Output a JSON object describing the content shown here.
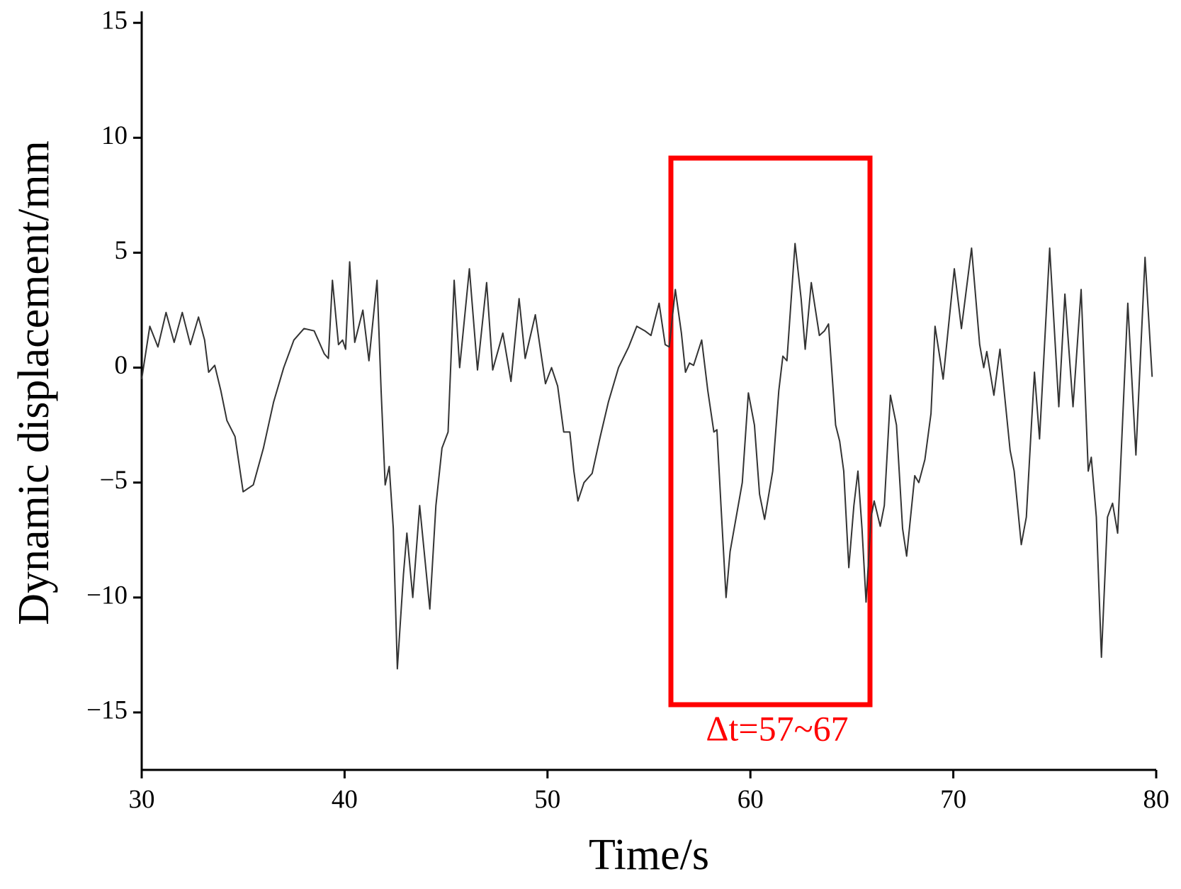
{
  "chart_data": {
    "type": "line",
    "xlabel": "Time/s",
    "ylabel": "Dynamic displacement/mm",
    "annotation": "Δt=57~67",
    "color": "#333333",
    "x": [
      30.0,
      30.4,
      30.8,
      31.2,
      31.6,
      32.0,
      32.4,
      32.8,
      33.1,
      33.3,
      33.6,
      33.9,
      34.2,
      34.6,
      35.0,
      35.5,
      36.0,
      36.5,
      37.0,
      37.5,
      38.0,
      38.5,
      39.0,
      39.2,
      39.4,
      39.7,
      39.9,
      40.05,
      40.25,
      40.5,
      40.9,
      41.2,
      41.6,
      41.8,
      42.0,
      42.2,
      42.4,
      42.6,
      42.9,
      43.07,
      43.36,
      43.7,
      44.2,
      44.5,
      44.8,
      45.1,
      45.4,
      45.67,
      46.15,
      46.55,
      47.0,
      47.3,
      47.8,
      48.2,
      48.6,
      48.9,
      49.4,
      49.9,
      50.2,
      50.5,
      50.8,
      51.1,
      51.3,
      51.5,
      51.8,
      52.2,
      52.6,
      53.0,
      53.5,
      54.0,
      54.4,
      54.8,
      55.1,
      55.5,
      55.8,
      56.0,
      56.3,
      56.6,
      56.8,
      57.0,
      57.2,
      57.6,
      57.9,
      58.2,
      58.35,
      58.55,
      58.8,
      59.0,
      59.3,
      59.6,
      59.9,
      60.2,
      60.45,
      60.7,
      61.1,
      61.4,
      61.6,
      61.8,
      62.2,
      62.5,
      62.7,
      63.0,
      63.4,
      63.65,
      63.85,
      64.2,
      64.4,
      64.6,
      64.85,
      65.1,
      65.3,
      65.5,
      65.7,
      65.95,
      66.1,
      66.4,
      66.6,
      66.9,
      67.2,
      67.5,
      67.7,
      68.1,
      68.3,
      68.6,
      68.9,
      69.1,
      69.5,
      70.05,
      70.4,
      70.9,
      71.3,
      71.5,
      71.65,
      72.0,
      72.3,
      72.8,
      73.0,
      73.35,
      73.6,
      73.85,
      74.0,
      74.25,
      74.75,
      75.2,
      75.5,
      75.9,
      76.3,
      76.65,
      76.8,
      77.05,
      77.3,
      77.6,
      77.85,
      78.1,
      78.6,
      79.0,
      79.45,
      79.8
    ],
    "values": [
      -0.5,
      1.8,
      0.9,
      2.4,
      1.1,
      2.4,
      1.0,
      2.2,
      1.2,
      -0.2,
      0.1,
      -1.0,
      -2.3,
      -3.0,
      -5.4,
      -5.1,
      -3.5,
      -1.5,
      0.0,
      1.2,
      1.7,
      1.6,
      0.6,
      0.4,
      3.8,
      1.0,
      1.2,
      0.8,
      4.6,
      1.1,
      2.5,
      0.3,
      3.8,
      -1.0,
      -5.1,
      -4.3,
      -7.0,
      -13.1,
      -9.0,
      -7.2,
      -10.0,
      -6.0,
      -10.5,
      -6.0,
      -3.5,
      -2.8,
      3.8,
      0.0,
      4.3,
      -0.1,
      3.7,
      -0.1,
      1.5,
      -0.6,
      3.0,
      0.4,
      2.3,
      -0.7,
      0.0,
      -0.8,
      -2.8,
      -2.8,
      -4.5,
      -5.8,
      -5.0,
      -4.6,
      -3.0,
      -1.5,
      0.0,
      0.9,
      1.8,
      1.6,
      1.4,
      2.8,
      1.0,
      0.9,
      3.4,
      1.5,
      -0.2,
      0.2,
      0.1,
      1.2,
      -1.0,
      -2.8,
      -2.7,
      -6.0,
      -10.0,
      -8.0,
      -6.5,
      -5.0,
      -1.1,
      -2.5,
      -5.5,
      -6.6,
      -4.5,
      -1.0,
      0.5,
      0.3,
      5.4,
      3.0,
      0.8,
      3.7,
      1.4,
      1.6,
      1.9,
      -2.5,
      -3.2,
      -4.5,
      -8.7,
      -6.0,
      -4.5,
      -7.0,
      -10.2,
      -6.5,
      -5.8,
      -6.9,
      -6.0,
      -1.2,
      -2.5,
      -7.0,
      -8.2,
      -4.7,
      -5.0,
      -4.0,
      -2.0,
      1.8,
      -0.5,
      4.3,
      1.7,
      5.2,
      1.0,
      0.0,
      0.7,
      -1.2,
      0.8,
      -3.6,
      -4.5,
      -7.7,
      -6.5,
      -2.5,
      -0.2,
      -3.1,
      5.2,
      -1.7,
      3.2,
      -1.7,
      3.4,
      -4.5,
      -3.9,
      -6.5,
      -12.6,
      -6.5,
      -5.9,
      -7.2,
      2.8,
      -3.8,
      4.8,
      -0.4
    ],
    "xlim": [
      30,
      80
    ],
    "ylim": [
      -17.5,
      15.5
    ],
    "xticks": [
      30,
      40,
      50,
      60,
      70,
      80
    ],
    "yticks": [
      {
        "value": -15,
        "label": "−15"
      },
      {
        "value": -10,
        "label": "−10"
      },
      {
        "value": -5,
        "label": "−5"
      },
      0,
      5,
      10,
      15
    ],
    "grid": false
  }
}
